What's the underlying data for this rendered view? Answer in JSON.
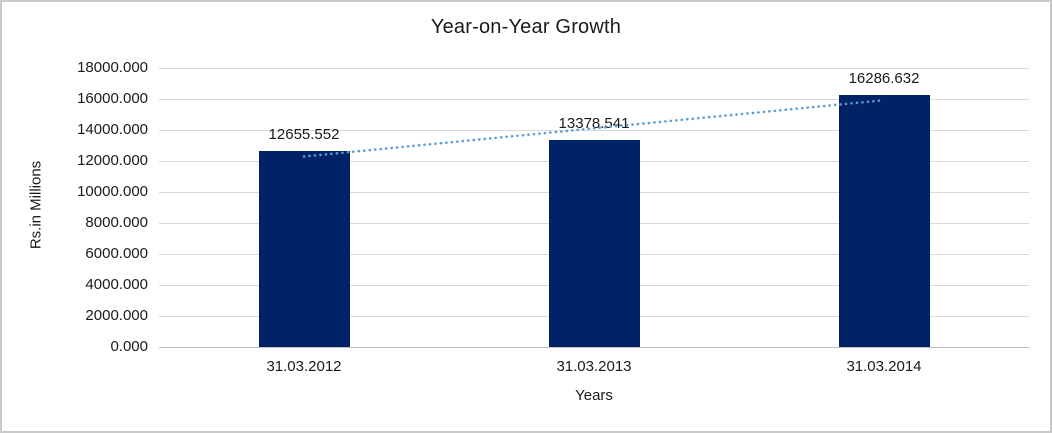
{
  "frame": {
    "background": "#ffffff",
    "border_color": "#c9c9c9"
  },
  "chart_data": {
    "type": "bar",
    "title": "Year-on-Year Growth",
    "xlabel": "Years",
    "ylabel": "Rs.in Millions",
    "categories": [
      "31.03.2012",
      "31.03.2013",
      "31.03.2014"
    ],
    "values": [
      12655.552,
      13378.541,
      16286.632
    ],
    "data_labels": [
      "12655.552",
      "13378.541",
      "16286.632"
    ],
    "y_ticks": [
      "18000.000",
      "16000.000",
      "14000.000",
      "12000.000",
      "10000.000",
      "8000.000",
      "6000.000",
      "4000.000",
      "2000.000",
      "0.000"
    ],
    "ylim": [
      0,
      18000
    ],
    "grid": true,
    "legend": "none",
    "bar_color": "#002366",
    "gridline_color": "#d9d9d9",
    "axis_line_color": "#bfbfbf",
    "text_color": "#1a1a1a",
    "trendline": {
      "type": "linear",
      "style": "dotted",
      "color": "#5b9bd5",
      "values": [
        12291,
        14107,
        15922
      ]
    }
  }
}
